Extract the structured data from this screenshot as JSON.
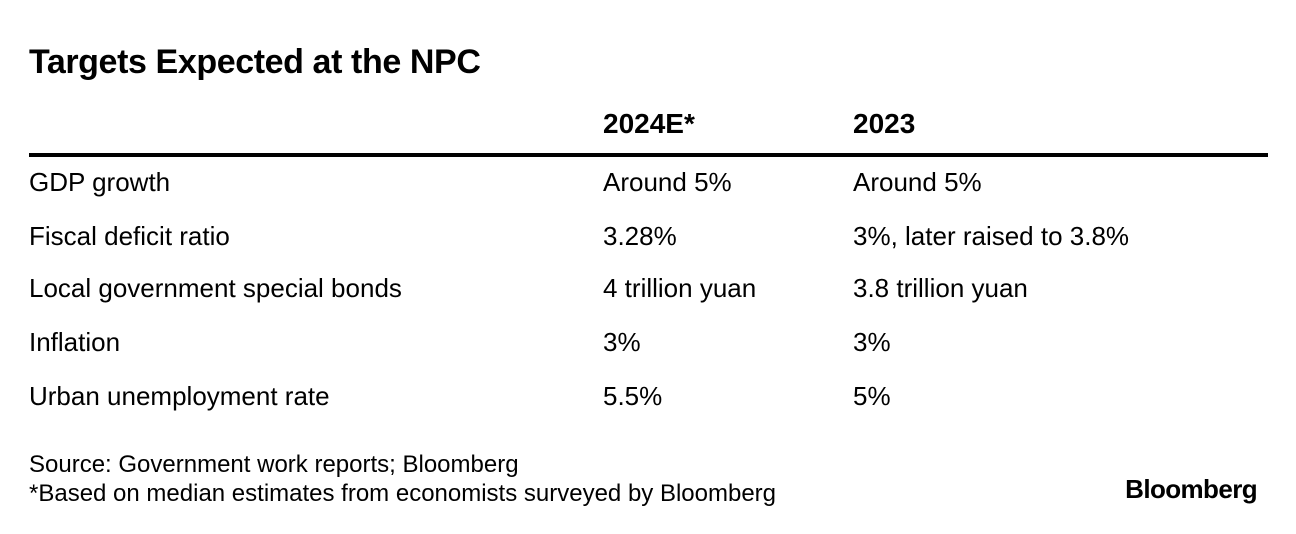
{
  "title": "Targets Expected at the NPC",
  "columns": {
    "col1": "2024E*",
    "col2": "2023"
  },
  "rows": [
    {
      "label": "GDP growth",
      "v2024": "Around 5%",
      "v2023": "Around 5%"
    },
    {
      "label": "Fiscal deficit ratio",
      "v2024": "3.28%",
      "v2023": "3%, later raised to 3.8%"
    },
    {
      "label": "Local government special bonds",
      "v2024": "4 trillion yuan",
      "v2023": "3.8 trillion yuan"
    },
    {
      "label": "Inflation",
      "v2024": "3%",
      "v2023": "3%"
    },
    {
      "label": "Urban unemployment rate",
      "v2024": "5.5%",
      "v2023": "5%"
    }
  ],
  "footer": {
    "source": "Source: Government work reports; Bloomberg",
    "note": "*Based on median estimates from economists surveyed by Bloomberg",
    "brand": "Bloomberg"
  }
}
